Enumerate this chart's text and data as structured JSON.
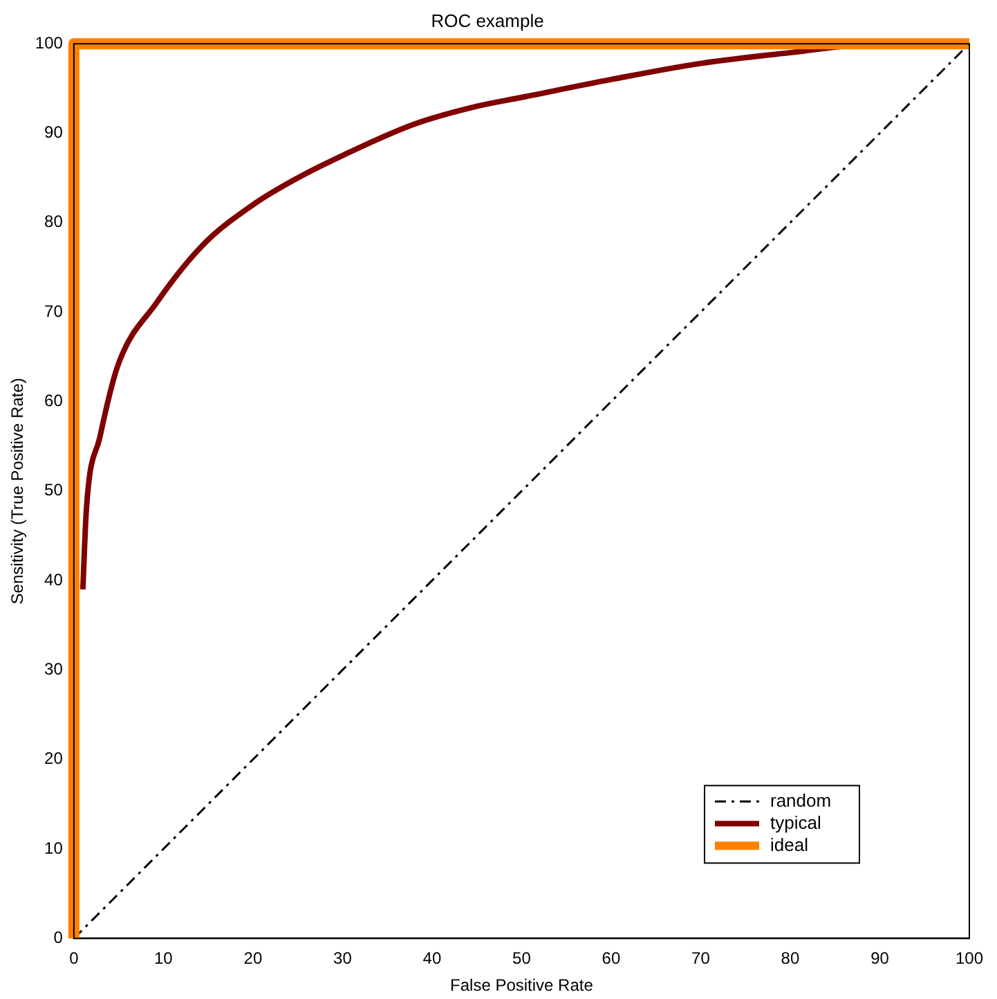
{
  "chart_data": {
    "type": "line",
    "title": "ROC example",
    "xlabel": "False Positive Rate",
    "ylabel": "Sensitivity (True Positive Rate)",
    "xlim": [
      0,
      100
    ],
    "ylim": [
      0,
      100
    ],
    "xticks": [
      0,
      10,
      20,
      30,
      40,
      50,
      60,
      70,
      80,
      90,
      100
    ],
    "yticks": [
      0,
      10,
      20,
      30,
      40,
      50,
      60,
      70,
      80,
      90,
      100
    ],
    "grid": false,
    "legend": "bottom right",
    "marker": "none",
    "series": [
      {
        "name": "random",
        "color": "#000000",
        "line_style": "dashdot",
        "x": [
          0,
          100
        ],
        "values": [
          0,
          100
        ]
      },
      {
        "name": "typical",
        "color": "#800000",
        "line_style": "solid",
        "x": [
          1,
          1.4,
          2.9,
          4.9,
          9.2,
          14.4,
          20,
          25,
          30,
          38,
          45,
          50,
          60,
          70,
          80,
          90,
          100
        ],
        "values": [
          39,
          48,
          56,
          64,
          71,
          77.5,
          82,
          85,
          87.5,
          91,
          93,
          94,
          96,
          97.8,
          99,
          100,
          100
        ]
      },
      {
        "name": "ideal",
        "color": "#ff8000",
        "line_style": "solid",
        "x": [
          0,
          0,
          100
        ],
        "values": [
          0,
          100,
          100
        ]
      }
    ]
  }
}
